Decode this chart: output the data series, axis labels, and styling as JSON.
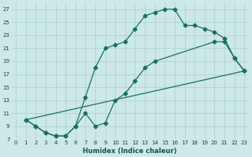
{
  "xlabel": "Humidex (Indice chaleur)",
  "background_color": "#cde8e8",
  "grid_color": "#aacfcf",
  "line_color": "#1a7060",
  "xlim": [
    -0.5,
    23.5
  ],
  "ylim": [
    7,
    28
  ],
  "xticks": [
    0,
    1,
    2,
    3,
    4,
    5,
    6,
    7,
    8,
    9,
    10,
    11,
    12,
    13,
    14,
    15,
    16,
    17,
    18,
    19,
    20,
    21,
    22,
    23
  ],
  "yticks": [
    7,
    9,
    11,
    13,
    15,
    17,
    19,
    21,
    23,
    25,
    27
  ],
  "line1_x": [
    1,
    2,
    3,
    4,
    5,
    6,
    7,
    8,
    9,
    10,
    11,
    12,
    13,
    14,
    15,
    16,
    17,
    18,
    19,
    20,
    21,
    22,
    23
  ],
  "line1_y": [
    10,
    9,
    8,
    7.5,
    7.5,
    9,
    13.5,
    18,
    21,
    21.5,
    22,
    24,
    26,
    26.5,
    27,
    27,
    24.5,
    24.5,
    24,
    23.5,
    22.5,
    19.5,
    17.5
  ],
  "line2_x": [
    1,
    2,
    3,
    4,
    5,
    6,
    7,
    8,
    9,
    10,
    11,
    12,
    13,
    14,
    20,
    21,
    22,
    23
  ],
  "line2_y": [
    10,
    9,
    8,
    7.5,
    7.5,
    9,
    11,
    9,
    9.5,
    13,
    14,
    16,
    18,
    19,
    22,
    22,
    19.5,
    17.5
  ],
  "line3_x": [
    1,
    23
  ],
  "line3_y": [
    10,
    17.5
  ]
}
